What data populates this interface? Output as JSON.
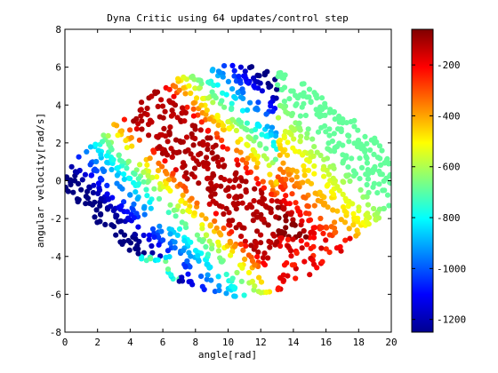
{
  "chart_data": {
    "type": "scatter",
    "title": "Dyna Critic using 64 updates/control step",
    "xlabel": "angle[rad]",
    "ylabel": "angular velocity[rad/s]",
    "xlim": [
      0,
      20
    ],
    "ylim": [
      -8,
      8
    ],
    "x_ticks": [
      0,
      2,
      4,
      6,
      8,
      10,
      12,
      14,
      16,
      18,
      20
    ],
    "y_ticks": [
      -8,
      -6,
      -4,
      -2,
      0,
      2,
      4,
      6,
      8
    ],
    "grid": false,
    "legend": "none",
    "colorbar": {
      "colormap": "jet",
      "range": [
        -1250,
        -60
      ],
      "ticks": [
        -200,
        -400,
        -600,
        -800,
        -1000,
        -1200
      ],
      "placement": "right"
    },
    "value_model": {
      "description": "color value: high (about -60) near the central X band, low (about -1250) in left and right lobes",
      "max_value": -60,
      "min_value": -1250
    },
    "point_count": 1400,
    "cluster_regions": [
      {
        "region": "central X band",
        "x_range": [
          5,
          13
        ],
        "y_range": [
          -3,
          5
        ],
        "value_range": [
          -200,
          -60
        ]
      },
      {
        "region": "upper-left arc",
        "x_range": [
          0,
          5
        ],
        "y_range": [
          3,
          6.2
        ],
        "value_range": [
          -350,
          -150
        ]
      },
      {
        "region": "left inner lobe",
        "x_range": [
          0,
          5
        ],
        "y_range": [
          -4,
          3
        ],
        "value_range": [
          -1250,
          -950
        ]
      },
      {
        "region": "left outer ring",
        "x_range": [
          0,
          7
        ],
        "y_range": [
          -6.8,
          -2
        ],
        "value_range": [
          -850,
          -500
        ]
      },
      {
        "region": "right inner lobe",
        "x_range": [
          15,
          20
        ],
        "y_range": [
          -3,
          4
        ],
        "value_range": [
          -650,
          -450
        ]
      },
      {
        "region": "right upper arc",
        "x_range": [
          15,
          20
        ],
        "y_range": [
          2,
          6
        ],
        "value_range": [
          -400,
          -200
        ]
      },
      {
        "region": "lower-right arc",
        "x_range": [
          14,
          20
        ],
        "y_range": [
          -6,
          -3
        ],
        "value_range": [
          -250,
          -100
        ]
      }
    ]
  }
}
